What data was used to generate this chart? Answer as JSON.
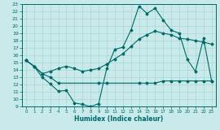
{
  "xlabel": "Humidex (Indice chaleur)",
  "ylabel": "",
  "bg_color": "#c8eaea",
  "grid_color": "#afd4d4",
  "line_color": "#006868",
  "xlim": [
    -0.5,
    23.5
  ],
  "ylim": [
    9,
    23
  ],
  "xticks": [
    0,
    1,
    2,
    3,
    4,
    5,
    6,
    7,
    8,
    9,
    10,
    11,
    12,
    13,
    14,
    15,
    16,
    17,
    18,
    19,
    20,
    21,
    22,
    23
  ],
  "yticks": [
    9,
    10,
    11,
    12,
    13,
    14,
    15,
    16,
    17,
    18,
    19,
    20,
    21,
    22,
    23
  ],
  "line_top_x": [
    0,
    1,
    2,
    3,
    4,
    5,
    6,
    7,
    8,
    9,
    10,
    11,
    12,
    13,
    14,
    15,
    16,
    17,
    18,
    19,
    20,
    21,
    22,
    23
  ],
  "line_top_y": [
    15.3,
    14.5,
    13.0,
    12.1,
    11.1,
    11.2,
    9.5,
    9.3,
    9.0,
    9.4,
    14.2,
    16.8,
    17.1,
    19.4,
    22.7,
    21.7,
    22.4,
    20.8,
    19.4,
    19.0,
    15.4,
    13.8,
    18.3,
    12.5
  ],
  "line_mid_x": [
    0,
    1,
    2,
    3,
    4,
    5,
    6,
    7,
    8,
    9,
    10,
    11,
    12,
    13,
    14,
    15,
    16,
    17,
    18,
    19,
    20,
    21,
    22,
    23
  ],
  "line_mid_y": [
    15.3,
    14.5,
    13.5,
    13.8,
    14.2,
    14.5,
    14.2,
    13.8,
    14.0,
    14.2,
    14.8,
    15.5,
    16.2,
    17.2,
    18.2,
    18.8,
    19.3,
    19.0,
    18.8,
    18.3,
    18.2,
    18.0,
    17.8,
    17.5
  ],
  "line_bot_x": [
    0,
    1,
    2,
    3,
    4,
    9,
    10,
    14,
    15,
    16,
    17,
    18,
    19,
    20,
    21,
    22,
    23
  ],
  "line_bot_y": [
    15.3,
    14.5,
    13.5,
    13.0,
    12.2,
    12.2,
    12.2,
    12.2,
    12.2,
    12.2,
    12.5,
    12.5,
    12.5,
    12.5,
    12.5,
    12.5,
    12.5
  ]
}
